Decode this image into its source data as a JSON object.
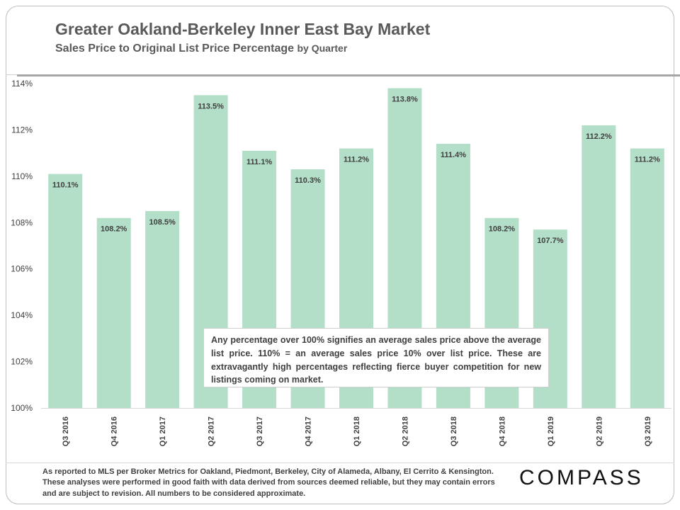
{
  "title": "Greater Oakland-Berkeley Inner East Bay Market",
  "subtitle_main": "Sales Price to Original  List Price Percentage",
  "subtitle_suffix": "by Quarter",
  "callout": "Any percentage over 100% signifies an average sales price above the average list price. 110% = an average sales price 10% over list price. These are extravagantly high percentages reflecting fierce buyer competition for new listings coming on market.",
  "footnote": "As reported to MLS per Broker Metrics for Oakland, Piedmont, Berkeley, City of Alameda, Albany, El Cerrito & Kensington. These analyses were performed in good faith with data derived from sources deemed reliable, but they may contain errors and are subject to revision. All numbers to be considered  approximate.",
  "logo": "COMPASS",
  "colors": {
    "bar": "#b3dec7",
    "text": "#404040",
    "axis": "#d9d9d9"
  },
  "chart_data": {
    "type": "bar",
    "categories": [
      "Q3 2016",
      "Q4 2016",
      "Q1 2017",
      "Q2 2017",
      "Q3 2017",
      "Q4 2017",
      "Q1 2018",
      "Q2 2018",
      "Q3 2018",
      "Q4 2018",
      "Q1 2019",
      "Q2 2019",
      "Q3 2019"
    ],
    "values": [
      110.1,
      108.2,
      108.5,
      113.5,
      111.1,
      110.3,
      111.2,
      113.8,
      111.4,
      108.2,
      107.7,
      112.2,
      111.2
    ],
    "value_labels": [
      "110.1%",
      "108.2%",
      "108.5%",
      "113.5%",
      "111.1%",
      "110.3%",
      "111.2%",
      "113.8%",
      "111.4%",
      "108.2%",
      "107.7%",
      "112.2%",
      "111.2%"
    ],
    "ylim": [
      100,
      114
    ],
    "yticks": [
      100,
      102,
      104,
      106,
      108,
      110,
      112,
      114
    ],
    "ytick_labels": [
      "100%",
      "102%",
      "104%",
      "106%",
      "108%",
      "110%",
      "112%",
      "114%"
    ],
    "title": "Greater Oakland-Berkeley Inner East Bay Market",
    "xlabel": "",
    "ylabel": "",
    "grid": false,
    "legend": "none"
  }
}
